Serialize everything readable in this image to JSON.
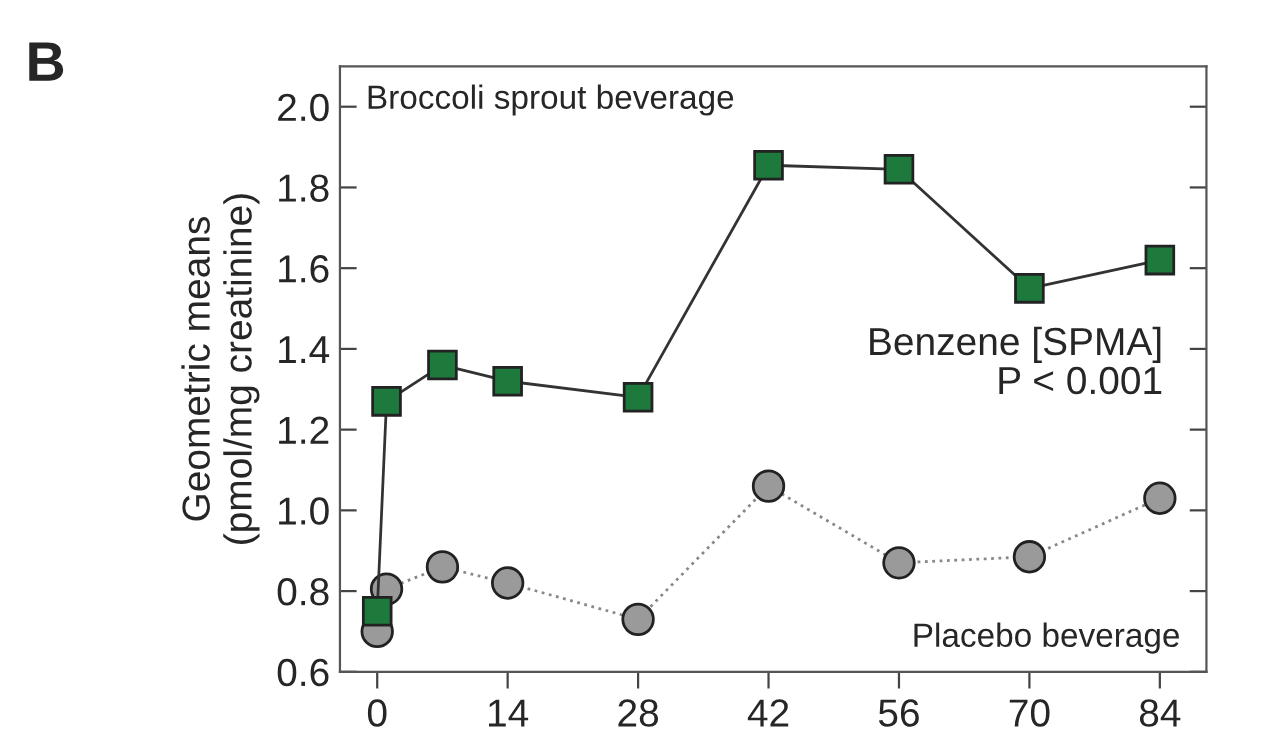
{
  "chart_data": {
    "type": "line",
    "ylabel": "Geometric means\n(pmol/mg creatinine)",
    "xlim": [
      -4,
      89
    ],
    "xticks": [
      0,
      14,
      28,
      42,
      56,
      70,
      84
    ],
    "ylim": [
      0.6,
      2.1
    ],
    "yticks": [
      0.6,
      0.8,
      {
        "value": 1,
        "label": "1.0"
      },
      1.2,
      1.4,
      1.6,
      1.8,
      {
        "value": 2,
        "label": "2.0"
      }
    ],
    "grid": false,
    "legend": false,
    "series": [
      {
        "name": "Broccoli sprout beverage",
        "color": "#1e7a3c",
        "marker": "square",
        "line_style": "solid",
        "x": [
          0,
          1,
          7,
          14,
          28,
          42,
          56,
          70,
          84
        ],
        "values": [
          0.75,
          1.27,
          1.36,
          1.32,
          1.28,
          1.855,
          1.845,
          1.55,
          1.62
        ]
      },
      {
        "name": "Placebo beverage",
        "color": "#9a9a9a",
        "marker": "circle",
        "line_style": "dotted",
        "x": [
          0,
          1,
          7,
          14,
          28,
          42,
          56,
          70,
          84
        ],
        "values": [
          0.7,
          0.805,
          0.86,
          0.82,
          0.73,
          1.06,
          0.87,
          0.885,
          1.03
        ]
      }
    ],
    "annotations": [
      "B",
      "Benzene [SPMA]\nP < 0.001"
    ]
  }
}
